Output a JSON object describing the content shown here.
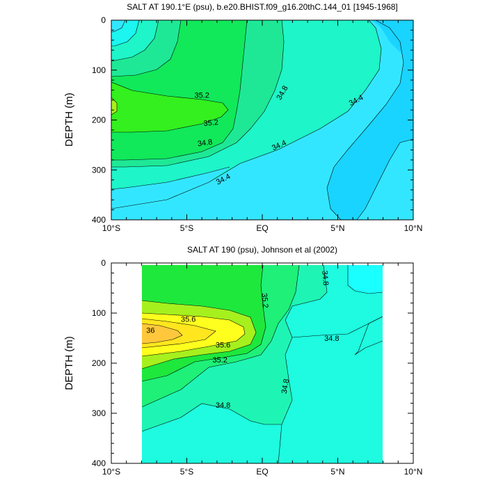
{
  "chart_data": [
    {
      "type": "contour",
      "title": "SALT AT 190.1°E (psu), b.e20.BHIST.f09_g16.20thC.144_01 [1945-1968]",
      "xlabel": "",
      "ylabel": "DEPTH (m)",
      "xlim": [
        -10,
        10
      ],
      "ylim": [
        400,
        0
      ],
      "x_ticks": [
        {
          "v": -10,
          "label": "10°S"
        },
        {
          "v": -5,
          "label": "5°S"
        },
        {
          "v": 0,
          "label": "EQ"
        },
        {
          "v": 5,
          "label": "5°N"
        },
        {
          "v": 10,
          "label": "10°N"
        }
      ],
      "y_ticks": [
        0,
        100,
        200,
        300,
        400
      ],
      "contour_levels": [
        34.2,
        34.4,
        34.6,
        34.8,
        35.0,
        35.2,
        35.4
      ],
      "colors": {
        "below_34.2": "#19D4FF",
        "34.2-34.4": "#33E6FF",
        "34.4-34.6": "#1CF5F0",
        "34.6-34.8": "#1EF5C8",
        "34.8-35.0": "#1EE896",
        "35.0-35.2": "#11E85A",
        "35.2-35.4": "#33F01E",
        "35.4-35.6": "#A6F01E"
      },
      "contour_labels": [
        {
          "text": "35.2",
          "lat": -4.0,
          "depth": 150,
          "rot": 0
        },
        {
          "text": "35.2",
          "lat": -3.4,
          "depth": 205,
          "rot": -5
        },
        {
          "text": "34.8",
          "lat": -3.8,
          "depth": 245,
          "rot": -8
        },
        {
          "text": "34.8",
          "lat": 1.3,
          "depth": 145,
          "rot": -60
        },
        {
          "text": "34.4",
          "lat": -2.6,
          "depth": 318,
          "rot": -28
        },
        {
          "text": "34.4",
          "lat": 1.1,
          "depth": 250,
          "rot": -25
        },
        {
          "text": "34.4",
          "lat": 6.2,
          "depth": 160,
          "rot": -28
        }
      ]
    },
    {
      "type": "contour",
      "title": "SALT AT 190 (psu), Johnson et al (2002)",
      "xlabel": "",
      "ylabel": "DEPTH (m)",
      "xlim": [
        -10,
        10
      ],
      "ylim": [
        400,
        0
      ],
      "data_lat_range": [
        -8,
        8
      ],
      "x_ticks": [
        {
          "v": -10,
          "label": "10°S"
        },
        {
          "v": -5,
          "label": "5°S"
        },
        {
          "v": 0,
          "label": "EQ"
        },
        {
          "v": 5,
          "label": "5°N"
        },
        {
          "v": 10,
          "label": "10°N"
        }
      ],
      "y_ticks": [
        0,
        100,
        200,
        300,
        400
      ],
      "contour_levels": [
        34.6,
        34.8,
        35.0,
        35.2,
        35.4,
        35.6,
        35.8,
        36.0
      ],
      "colors": {
        "below_34.6": "#1AFFFF",
        "34.6-34.8": "#1EFBE0",
        "34.8-35.0": "#1EF5B4",
        "35.0-35.2": "#1EF078",
        "35.2-35.4": "#1EE83C",
        "35.4-35.6": "#A6F01E",
        "35.6-35.8": "#FFFF1E",
        "35.8-36.0": "#FFE61E",
        "above_36.0": "#FFC83C"
      },
      "contour_labels": [
        {
          "text": "35.6",
          "lat": -4.9,
          "depth": 112,
          "rot": 0
        },
        {
          "text": "36",
          "lat": -7.4,
          "depth": 134,
          "rot": 0
        },
        {
          "text": "35.6",
          "lat": -2.6,
          "depth": 163,
          "rot": 0
        },
        {
          "text": "35.2",
          "lat": -2.8,
          "depth": 193,
          "rot": 0
        },
        {
          "text": "35.2",
          "lat": 0.2,
          "depth": 75,
          "rot": 85
        },
        {
          "text": "34.8",
          "lat": 4.2,
          "depth": 30,
          "rot": 85
        },
        {
          "text": "34.8",
          "lat": 4.6,
          "depth": 150,
          "rot": 0
        },
        {
          "text": "34.8",
          "lat": 1.5,
          "depth": 246,
          "rot": -80
        },
        {
          "text": "34.8",
          "lat": -2.6,
          "depth": 283,
          "rot": 0
        }
      ]
    }
  ]
}
